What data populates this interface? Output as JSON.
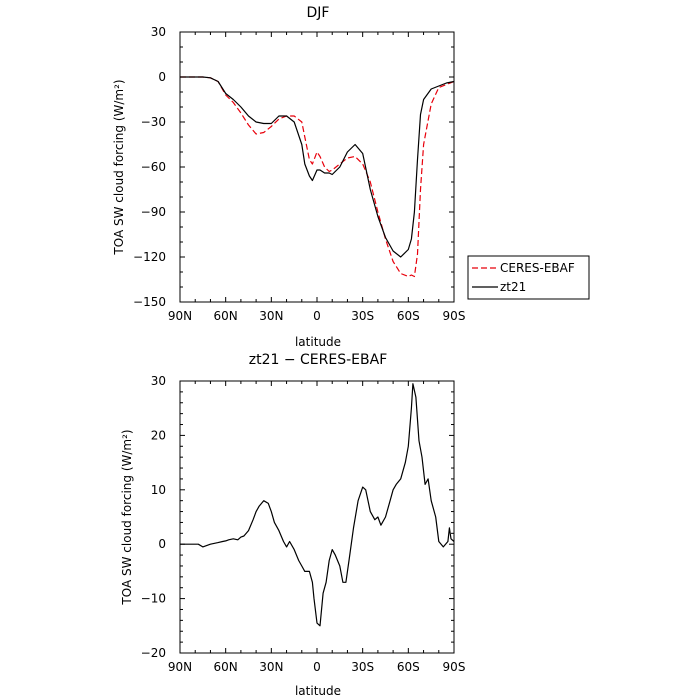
{
  "chart_data": [
    {
      "type": "line",
      "title": "DJF",
      "xlabel": "latitude",
      "ylabel": "TOA SW cloud forcing (W/m²)",
      "xlim": [
        90,
        -90
      ],
      "ylim": [
        -150,
        30
      ],
      "xtick_values": [
        90,
        60,
        30,
        0,
        -30,
        -60,
        -90
      ],
      "xtick_labels": [
        "90N",
        "60N",
        "30N",
        "0",
        "30S",
        "60S",
        "90S"
      ],
      "ytick_values": [
        30,
        0,
        -30,
        -60,
        -90,
        -120,
        -150
      ],
      "ytick_labels": [
        "30",
        "0",
        "−30",
        "−60",
        "−90",
        "−120",
        "−150"
      ],
      "legend_position": "right",
      "series": [
        {
          "name": "CERES-EBAF",
          "color": "#e8000b",
          "dash": "dashed",
          "x": [
            90,
            85,
            80,
            75,
            70,
            65,
            60,
            55,
            50,
            45,
            40,
            35,
            30,
            25,
            20,
            15,
            10,
            8,
            5,
            3,
            0,
            -2,
            -5,
            -8,
            -10,
            -15,
            -20,
            -25,
            -30,
            -35,
            -40,
            -45,
            -50,
            -55,
            -60,
            -62,
            -64,
            -66,
            -68,
            -70,
            -75,
            -80,
            -85,
            -90
          ],
          "y": [
            0,
            0,
            0,
            0,
            -0.5,
            -3,
            -12,
            -17,
            -24,
            -32,
            -38,
            -37,
            -33,
            -28,
            -26,
            -26,
            -30,
            -40,
            -55,
            -58,
            -50,
            -53,
            -60,
            -63,
            -62,
            -58,
            -54,
            -53,
            -58,
            -70,
            -90,
            -108,
            -123,
            -131,
            -133,
            -132,
            -133,
            -118,
            -75,
            -45,
            -18,
            -7,
            -5,
            -3
          ]
        },
        {
          "name": "zt21",
          "color": "#000000",
          "dash": "solid",
          "x": [
            90,
            85,
            80,
            75,
            70,
            65,
            60,
            55,
            50,
            45,
            40,
            35,
            30,
            25,
            20,
            15,
            10,
            8,
            5,
            3,
            0,
            -2,
            -5,
            -8,
            -10,
            -15,
            -20,
            -25,
            -30,
            -35,
            -40,
            -45,
            -50,
            -55,
            -60,
            -62,
            -64,
            -66,
            -68,
            -70,
            -75,
            -80,
            -85,
            -90
          ],
          "y": [
            0,
            0,
            0,
            0,
            -0.5,
            -3,
            -11,
            -15,
            -20,
            -26,
            -30,
            -31,
            -31,
            -26,
            -26,
            -30,
            -45,
            -58,
            -66,
            -69,
            -62,
            -62,
            -64,
            -64,
            -65,
            -60,
            -50,
            -45,
            -51,
            -75,
            -93,
            -107,
            -116,
            -120,
            -115,
            -108,
            -90,
            -55,
            -25,
            -15,
            -8,
            -6,
            -4,
            -3
          ]
        }
      ]
    },
    {
      "type": "line",
      "title": "zt21 − CERES-EBAF",
      "xlabel": "latitude",
      "ylabel": "TOA SW cloud forcing (W/m²)",
      "xlim": [
        90,
        -90
      ],
      "ylim": [
        -20,
        30
      ],
      "xtick_values": [
        90,
        60,
        30,
        0,
        -30,
        -60,
        -90
      ],
      "xtick_labels": [
        "90N",
        "60N",
        "30N",
        "0",
        "30S",
        "60S",
        "90S"
      ],
      "ytick_values": [
        30,
        20,
        10,
        0,
        -10,
        -20
      ],
      "ytick_labels": [
        "30",
        "20",
        "10",
        "0",
        "−10",
        "−20"
      ],
      "series": [
        {
          "color": "#000000",
          "dash": "solid",
          "x": [
            90,
            85,
            80,
            78,
            75,
            70,
            65,
            62,
            60,
            58,
            55,
            52,
            50,
            48,
            45,
            42,
            40,
            38,
            35,
            32,
            30,
            28,
            25,
            22,
            20,
            18,
            15,
            12,
            10,
            8,
            5,
            3,
            2,
            0,
            -2,
            -4,
            -6,
            -8,
            -10,
            -12,
            -15,
            -17,
            -19,
            -21,
            -24,
            -27,
            -30,
            -32,
            -35,
            -38,
            -40,
            -42,
            -45,
            -48,
            -50,
            -52,
            -55,
            -58,
            -60,
            -62,
            -63,
            -65,
            -67,
            -69,
            -71,
            -73,
            -75,
            -78,
            -80,
            -83,
            -86,
            -87,
            -88,
            -90
          ],
          "y": [
            0,
            0,
            0,
            0,
            -0.5,
            0,
            0.3,
            0.5,
            0.6,
            0.8,
            1,
            0.8,
            1.3,
            1.5,
            2.5,
            4.5,
            6,
            7,
            8,
            7.5,
            6,
            4,
            2.5,
            0.5,
            -0.5,
            0.5,
            -1,
            -3,
            -4,
            -5,
            -5,
            -7,
            -10,
            -14.5,
            -15,
            -9,
            -7,
            -3,
            -1,
            -2,
            -4,
            -7,
            -7,
            -3,
            3,
            8,
            10.5,
            10,
            6,
            4.5,
            5,
            3.5,
            5,
            8,
            10,
            11,
            12,
            15,
            18,
            25,
            29.5,
            27,
            19,
            16,
            11,
            12,
            8,
            5,
            0.5,
            -0.5,
            0.5,
            3,
            1,
            0.5
          ]
        }
      ]
    }
  ]
}
